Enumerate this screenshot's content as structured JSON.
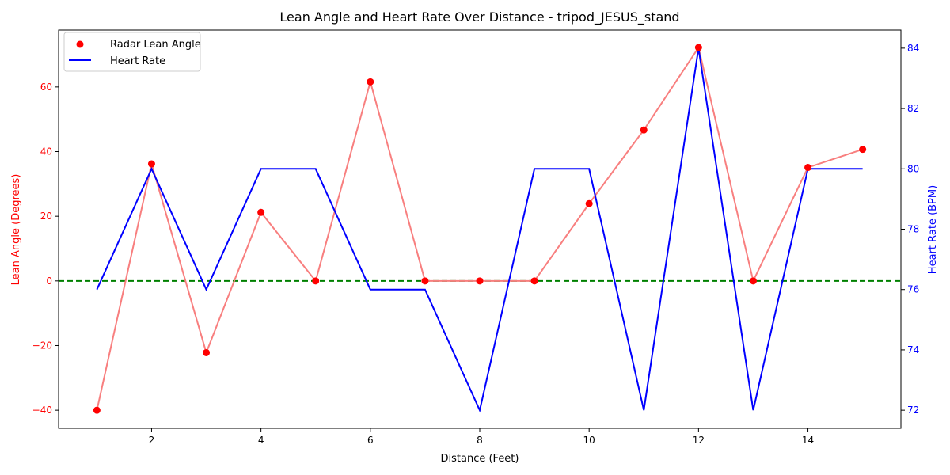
{
  "chart_data": {
    "type": "line",
    "title": "Lean Angle and Heart Rate Over Distance - tripod_JESUS_stand",
    "xlabel": "Distance (Feet)",
    "ylabel_left": "Lean Angle (Degrees)",
    "ylabel_right": "Heart Rate (BPM)",
    "xlim": [
      0.3,
      15.7
    ],
    "ylim_left": [
      -45.6,
      77.6
    ],
    "ylim_right": [
      71.4,
      84.6
    ],
    "x_ticks": [
      2,
      4,
      6,
      8,
      10,
      12,
      14
    ],
    "y_left_ticks": [
      -40,
      -20,
      0,
      20,
      40,
      60
    ],
    "y_right_ticks": [
      72,
      74,
      76,
      78,
      80,
      82,
      84
    ],
    "legend_position": "upper-left",
    "grid": false,
    "reference_line": {
      "y": 0,
      "color": "#008000",
      "style": "dashed"
    },
    "series": [
      {
        "name": "Radar Lean Angle",
        "axis": "left",
        "marker_color": "#ff0000",
        "line_color": "#f87f7f",
        "x": [
          1,
          2,
          3,
          4,
          5,
          6,
          7,
          8,
          9,
          10,
          11,
          12,
          13,
          14,
          15
        ],
        "values": [
          -40,
          36.2,
          -22.2,
          21.2,
          0,
          61.6,
          0,
          0,
          0,
          23.9,
          46.7,
          72.2,
          0,
          35.1,
          40.7
        ]
      },
      {
        "name": "Heart Rate",
        "axis": "right",
        "line_color": "#0000ff",
        "x": [
          1,
          2,
          3,
          4,
          5,
          6,
          7,
          8,
          9,
          10,
          11,
          12,
          13,
          14,
          15
        ],
        "values": [
          76,
          80,
          76,
          80,
          80,
          76,
          76,
          72,
          80,
          80,
          72,
          84,
          72,
          80,
          80
        ]
      }
    ]
  }
}
